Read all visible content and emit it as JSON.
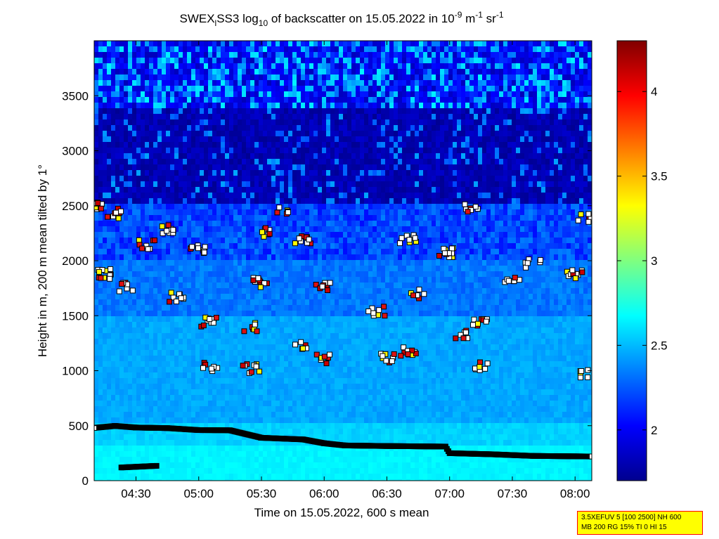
{
  "chart_data": {
    "type": "heatmap",
    "title_parts": {
      "a": "SWEX",
      "b": "l",
      "c": "SS3 log",
      "d": "10",
      "e": " of backscatter on 15.05.2022 in 10",
      "f": "-9",
      "g": " m",
      "h": "-1",
      "i": " sr",
      "j": "-1"
    },
    "xlabel": "Time on 15.05.2022, 600 s mean",
    "ylabel": "Height in m, 200 m mean tilted by 1°",
    "x_range": [
      "04:10",
      "08:08"
    ],
    "ylim": [
      0,
      4000
    ],
    "x_tick_labels": [
      "04:30",
      "05:00",
      "05:30",
      "06:00",
      "06:30",
      "07:00",
      "07:30",
      "08:00"
    ],
    "y_tick_labels": [
      "0",
      "500",
      "1000",
      "1500",
      "2000",
      "2500",
      "3000",
      "3500"
    ],
    "y_tick_values": [
      0,
      500,
      1000,
      1500,
      2000,
      2500,
      3000,
      3500
    ],
    "colorbar": {
      "range": [
        1.7,
        4.3
      ],
      "tick_values": [
        2,
        2.5,
        3,
        3.5,
        4
      ],
      "tick_labels": [
        "2",
        "2.5",
        "3",
        "3.5",
        "4"
      ],
      "colormap": "jet"
    },
    "boundary_layer_top_m": [
      {
        "time": "04:10",
        "height": 480
      },
      {
        "time": "04:20",
        "height": 498
      },
      {
        "time": "04:30",
        "height": 483
      },
      {
        "time": "04:45",
        "height": 478
      },
      {
        "time": "05:00",
        "height": 460
      },
      {
        "time": "05:15",
        "height": 458
      },
      {
        "time": "05:30",
        "height": 390
      },
      {
        "time": "05:50",
        "height": 375
      },
      {
        "time": "06:00",
        "height": 340
      },
      {
        "time": "06:10",
        "height": 320
      },
      {
        "time": "06:30",
        "height": 315
      },
      {
        "time": "06:58",
        "height": 310
      },
      {
        "time": "07:00",
        "height": 250
      },
      {
        "time": "07:20",
        "height": 240
      },
      {
        "time": "07:40",
        "height": 225
      },
      {
        "time": "08:08",
        "height": 220
      }
    ],
    "near_surface_layer_m": [
      {
        "time": "04:23",
        "height": 120
      },
      {
        "time": "04:40",
        "height": 135
      }
    ],
    "cloud_layers_m": [
      {
        "time": "04:10",
        "height": 2490
      },
      {
        "time": "04:20",
        "height": 2430
      },
      {
        "time": "04:35",
        "height": 2150
      },
      {
        "time": "04:45",
        "height": 2290
      },
      {
        "time": "05:00",
        "height": 2100
      },
      {
        "time": "05:30",
        "height": 2260
      },
      {
        "time": "05:40",
        "height": 2450
      },
      {
        "time": "05:50",
        "height": 2200
      },
      {
        "time": "06:40",
        "height": 2200
      },
      {
        "time": "06:58",
        "height": 2070
      },
      {
        "time": "07:10",
        "height": 2490
      },
      {
        "time": "07:40",
        "height": 1980
      },
      {
        "time": "08:05",
        "height": 2380
      },
      {
        "time": "04:15",
        "height": 1880
      },
      {
        "time": "04:25",
        "height": 1760
      },
      {
        "time": "04:50",
        "height": 1670
      },
      {
        "time": "05:30",
        "height": 1800
      },
      {
        "time": "06:00",
        "height": 1770
      },
      {
        "time": "06:45",
        "height": 1700
      },
      {
        "time": "07:30",
        "height": 1850
      },
      {
        "time": "08:00",
        "height": 1870
      },
      {
        "time": "05:05",
        "height": 1440
      },
      {
        "time": "05:25",
        "height": 1390
      },
      {
        "time": "05:50",
        "height": 1240
      },
      {
        "time": "06:25",
        "height": 1540
      },
      {
        "time": "07:05",
        "height": 1330
      },
      {
        "time": "07:15",
        "height": 1440
      },
      {
        "time": "05:05",
        "height": 1040
      },
      {
        "time": "05:25",
        "height": 1020
      },
      {
        "time": "06:00",
        "height": 1110
      },
      {
        "time": "06:30",
        "height": 1110
      },
      {
        "time": "06:40",
        "height": 1180
      },
      {
        "time": "07:15",
        "height": 1040
      },
      {
        "time": "08:05",
        "height": 970
      }
    ]
  },
  "info_box": {
    "line1": "3.5XEFUV 5 [100 2500] NH 600",
    "line2": "MB 200 RG 15% TI 0 HI 15"
  },
  "colors": {
    "marker_outline": "#000000",
    "boundary_layer": "#000000",
    "info_box_bg": "#ffff00",
    "info_box_border": "#ff0000"
  }
}
